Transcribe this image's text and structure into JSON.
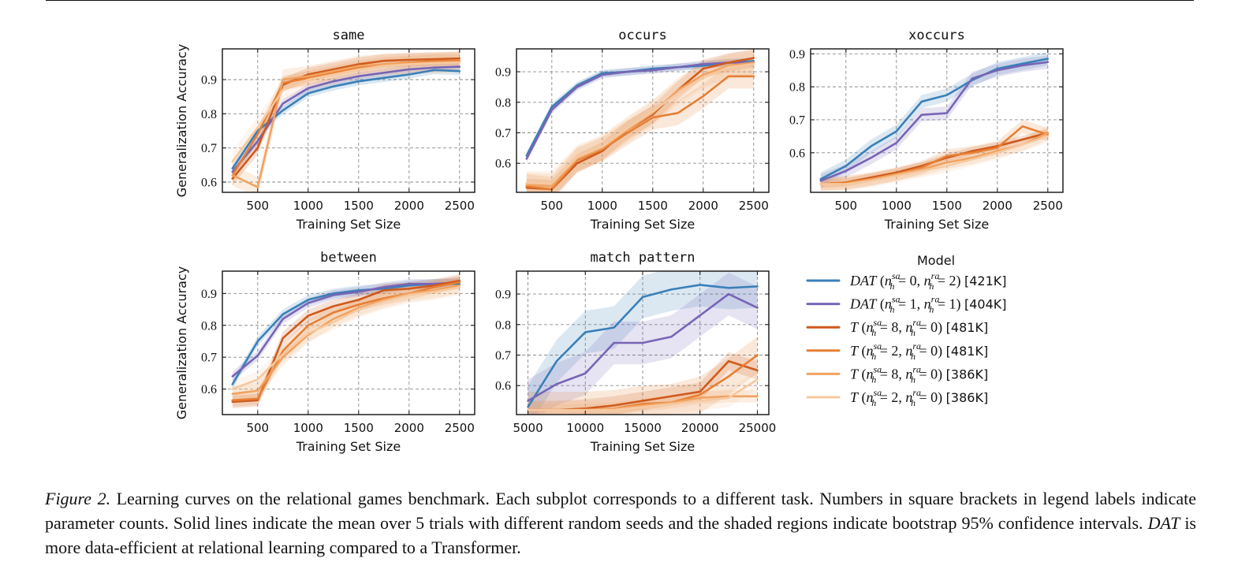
{
  "colors": {
    "dat_sa0_ra2": "#3a80b8",
    "dat_sa1_ra1": "#7765b5",
    "t_sa8_ra0_481k": "#cf5a1d",
    "t_sa2_ra0_481k": "#e67f34",
    "t_sa8_ra0_386k": "#f0a260",
    "t_sa2_ra0_386k": "#f6c9a0"
  },
  "figure": {
    "legend": {
      "title": "Model",
      "entries": [
        {
          "key": "dat_sa0_ra2",
          "base": "DAT",
          "sa": "0",
          "ra": "2",
          "count": "[421K]"
        },
        {
          "key": "dat_sa1_ra1",
          "base": "DAT",
          "sa": "1",
          "ra": "1",
          "count": "[404K]"
        },
        {
          "key": "t_sa8_ra0_481k",
          "base": "T",
          "sa": "8",
          "ra": "0",
          "count": "[481K]"
        },
        {
          "key": "t_sa2_ra0_481k",
          "base": "T",
          "sa": "2",
          "ra": "0",
          "count": "[481K]"
        },
        {
          "key": "t_sa8_ra0_386k",
          "base": "T",
          "sa": "8",
          "ra": "0",
          "count": "[386K]"
        },
        {
          "key": "t_sa2_ra0_386k",
          "base": "T",
          "sa": "2",
          "ra": "0",
          "count": "[386K]"
        }
      ]
    },
    "xlabel": "Training Set Size",
    "ylabel": "Generalization Accuracy"
  },
  "chart_data": [
    {
      "type": "line",
      "title": "same",
      "xlabel": "Training Set Size",
      "ylabel": "Generalization Accuracy",
      "xlim": [
        150,
        2650
      ],
      "ylim": [
        0.57,
        0.99
      ],
      "xticks": [
        500,
        1000,
        1500,
        2000,
        2500
      ],
      "yticks": [
        0.6,
        0.7,
        0.8,
        0.9
      ],
      "ytick_labels": [
        "0.6",
        "0.7",
        "0.8",
        "0.9"
      ],
      "x": [
        250,
        500,
        750,
        1000,
        1250,
        1500,
        1750,
        2000,
        2250,
        2500
      ],
      "series": [
        {
          "key": "dat_sa0_ra2",
          "values": [
            0.64,
            0.75,
            0.81,
            0.86,
            0.88,
            0.895,
            0.905,
            0.915,
            0.928,
            0.925
          ],
          "band": 0.012
        },
        {
          "key": "dat_sa1_ra1",
          "values": [
            0.63,
            0.72,
            0.83,
            0.875,
            0.895,
            0.91,
            0.92,
            0.93,
            0.935,
            0.938
          ],
          "band": 0.012
        },
        {
          "key": "t_sa8_ra0_481k",
          "values": [
            0.61,
            0.7,
            0.885,
            0.915,
            0.93,
            0.945,
            0.955,
            0.958,
            0.96,
            0.962
          ],
          "band": 0.02
        },
        {
          "key": "t_sa2_ra0_481k",
          "values": [
            0.62,
            0.74,
            0.89,
            0.905,
            0.92,
            0.935,
            0.945,
            0.95,
            0.955,
            0.955
          ],
          "band": 0.02
        },
        {
          "key": "t_sa8_ra0_386k",
          "values": [
            0.62,
            0.585,
            0.9,
            0.91,
            0.925,
            0.94,
            0.945,
            0.948,
            0.95,
            0.952
          ],
          "band": 0.03
        },
        {
          "key": "t_sa2_ra0_386k",
          "values": [
            0.66,
            0.76,
            0.87,
            0.9,
            0.915,
            0.93,
            0.94,
            0.945,
            0.948,
            0.95
          ],
          "band": 0.03
        }
      ]
    },
    {
      "type": "line",
      "title": "occurs",
      "xlabel": "Training Set Size",
      "ylabel": "",
      "xlim": [
        150,
        2650
      ],
      "ylim": [
        0.505,
        0.975
      ],
      "xticks": [
        500,
        1000,
        1500,
        2000,
        2500
      ],
      "yticks": [
        0.6,
        0.7,
        0.8,
        0.9
      ],
      "ytick_labels": [
        "0.6",
        "0.7",
        "0.8",
        "0.9"
      ],
      "x": [
        250,
        500,
        750,
        1000,
        1250,
        1500,
        1750,
        2000,
        2250,
        2500
      ],
      "series": [
        {
          "key": "dat_sa0_ra2",
          "values": [
            0.625,
            0.785,
            0.855,
            0.895,
            0.9,
            0.91,
            0.915,
            0.92,
            0.93,
            0.935
          ],
          "band": 0.012
        },
        {
          "key": "dat_sa1_ra1",
          "values": [
            0.615,
            0.775,
            0.85,
            0.89,
            0.9,
            0.905,
            0.915,
            0.925,
            0.93,
            0.93
          ],
          "band": 0.012
        },
        {
          "key": "t_sa8_ra0_481k",
          "values": [
            0.52,
            0.515,
            0.6,
            0.64,
            0.71,
            0.76,
            0.84,
            0.91,
            0.93,
            0.945
          ],
          "band": 0.03
        },
        {
          "key": "t_sa2_ra0_481k",
          "values": [
            0.525,
            0.515,
            0.61,
            0.645,
            0.7,
            0.75,
            0.765,
            0.82,
            0.885,
            0.885
          ],
          "band": 0.04
        },
        {
          "key": "t_sa8_ra0_386k",
          "values": [
            0.53,
            0.525,
            0.615,
            0.65,
            0.71,
            0.765,
            0.84,
            0.89,
            0.92,
            0.93
          ],
          "band": 0.04
        },
        {
          "key": "t_sa2_ra0_386k",
          "values": [
            0.535,
            0.535,
            0.62,
            0.655,
            0.715,
            0.77,
            0.83,
            0.88,
            0.915,
            0.925
          ],
          "band": 0.04
        }
      ]
    },
    {
      "type": "line",
      "title": "xoccurs",
      "xlabel": "Training Set Size",
      "ylabel": "",
      "xlim": [
        150,
        2650
      ],
      "ylim": [
        0.48,
        0.915
      ],
      "xticks": [
        500,
        1000,
        1500,
        2000,
        2500
      ],
      "yticks": [
        0.6,
        0.7,
        0.8,
        0.9
      ],
      "ytick_labels": [
        "0.6",
        "0.7",
        "0.8",
        "0.9"
      ],
      "x": [
        250,
        500,
        750,
        1000,
        1250,
        1500,
        1750,
        2000,
        2250,
        2500
      ],
      "series": [
        {
          "key": "dat_sa0_ra2",
          "values": [
            0.52,
            0.56,
            0.62,
            0.665,
            0.755,
            0.775,
            0.82,
            0.855,
            0.87,
            0.885
          ],
          "band": 0.02
        },
        {
          "key": "dat_sa1_ra1",
          "values": [
            0.515,
            0.545,
            0.585,
            0.63,
            0.715,
            0.72,
            0.825,
            0.85,
            0.865,
            0.875
          ],
          "band": 0.02
        },
        {
          "key": "t_sa8_ra0_481k",
          "values": [
            0.505,
            0.51,
            0.525,
            0.54,
            0.56,
            0.585,
            0.605,
            0.62,
            0.64,
            0.66
          ],
          "band": 0.012
        },
        {
          "key": "t_sa2_ra0_481k",
          "values": [
            0.505,
            0.51,
            0.52,
            0.535,
            0.555,
            0.59,
            0.6,
            0.615,
            0.68,
            0.655
          ],
          "band": 0.02
        },
        {
          "key": "t_sa8_ra0_386k",
          "values": [
            0.505,
            0.505,
            0.52,
            0.535,
            0.55,
            0.57,
            0.585,
            0.605,
            0.625,
            0.66
          ],
          "band": 0.02
        },
        {
          "key": "t_sa2_ra0_386k",
          "values": [
            0.505,
            0.505,
            0.515,
            0.53,
            0.545,
            0.56,
            0.58,
            0.6,
            0.625,
            0.65
          ],
          "band": 0.02
        }
      ]
    },
    {
      "type": "line",
      "title": "between",
      "xlabel": "Training Set Size",
      "ylabel": "Generalization Accuracy",
      "xlim": [
        150,
        2650
      ],
      "ylim": [
        0.52,
        0.97
      ],
      "xticks": [
        500,
        1000,
        1500,
        2000,
        2500
      ],
      "yticks": [
        0.6,
        0.7,
        0.8,
        0.9
      ],
      "ytick_labels": [
        "0.6",
        "0.7",
        "0.8",
        "0.9"
      ],
      "x": [
        250,
        500,
        750,
        1000,
        1250,
        1500,
        1750,
        2000,
        2250,
        2500
      ],
      "series": [
        {
          "key": "dat_sa0_ra2",
          "values": [
            0.615,
            0.75,
            0.835,
            0.88,
            0.9,
            0.91,
            0.915,
            0.925,
            0.93,
            0.93
          ],
          "band": 0.015
        },
        {
          "key": "dat_sa1_ra1",
          "values": [
            0.64,
            0.705,
            0.82,
            0.87,
            0.895,
            0.905,
            0.92,
            0.93,
            0.93,
            0.935
          ],
          "band": 0.015
        },
        {
          "key": "t_sa8_ra0_481k",
          "values": [
            0.56,
            0.565,
            0.76,
            0.83,
            0.86,
            0.88,
            0.91,
            0.915,
            0.925,
            0.94
          ],
          "band": 0.02
        },
        {
          "key": "t_sa2_ra0_481k",
          "values": [
            0.565,
            0.57,
            0.72,
            0.8,
            0.84,
            0.865,
            0.885,
            0.9,
            0.92,
            0.935
          ],
          "band": 0.02
        },
        {
          "key": "t_sa8_ra0_386k",
          "values": [
            0.585,
            0.595,
            0.7,
            0.77,
            0.82,
            0.855,
            0.88,
            0.9,
            0.91,
            0.925
          ],
          "band": 0.025
        },
        {
          "key": "t_sa2_ra0_386k",
          "values": [
            0.6,
            0.63,
            0.71,
            0.775,
            0.81,
            0.85,
            0.875,
            0.895,
            0.905,
            0.92
          ],
          "band": 0.025
        }
      ]
    },
    {
      "type": "line",
      "title": "match pattern",
      "xlabel": "Training Set Size",
      "ylabel": "",
      "xlim": [
        4000,
        26000
      ],
      "ylim": [
        0.505,
        0.975
      ],
      "xticks": [
        5000,
        10000,
        15000,
        20000,
        25000
      ],
      "yticks": [
        0.6,
        0.7,
        0.8,
        0.9
      ],
      "ytick_labels": [
        "0.6",
        "0.7",
        "0.8",
        "0.9"
      ],
      "x": [
        5000,
        7500,
        10000,
        12500,
        15000,
        17500,
        20000,
        22500,
        25000
      ],
      "series": [
        {
          "key": "dat_sa0_ra2",
          "values": [
            0.53,
            0.68,
            0.775,
            0.79,
            0.89,
            0.915,
            0.93,
            0.92,
            0.925
          ],
          "band": 0.07
        },
        {
          "key": "dat_sa1_ra1",
          "values": [
            0.55,
            0.605,
            0.64,
            0.74,
            0.74,
            0.76,
            0.83,
            0.9,
            0.855
          ],
          "band": 0.07
        },
        {
          "key": "t_sa8_ra0_481k",
          "values": [
            0.52,
            0.52,
            0.525,
            0.535,
            0.55,
            0.565,
            0.58,
            0.68,
            0.65
          ],
          "band": 0.03
        },
        {
          "key": "t_sa2_ra0_481k",
          "values": [
            0.52,
            0.52,
            0.52,
            0.525,
            0.54,
            0.545,
            0.57,
            0.63,
            0.7
          ],
          "band": 0.06
        },
        {
          "key": "t_sa8_ra0_386k",
          "values": [
            0.52,
            0.52,
            0.52,
            0.525,
            0.535,
            0.545,
            0.56,
            0.565,
            0.565
          ],
          "band": 0.02
        },
        {
          "key": "t_sa2_ra0_386k",
          "values": [
            0.52,
            0.52,
            0.52,
            0.52,
            0.53,
            0.54,
            0.55,
            0.56,
            0.62
          ],
          "band": 0.03
        }
      ]
    }
  ],
  "caption": {
    "label": "Figure 2.",
    "text_1": " Learning curves on the relational games benchmark. Each subplot corresponds to a different task. Numbers in square brackets in legend labels indicate parameter counts. Solid lines indicate the mean over 5 trials with different random seeds and the shaded regions indicate bootstrap 95% confidence intervals. ",
    "dat": "DAT",
    "text_2": " is more data-efficient at relational learning compared to a Transformer."
  }
}
